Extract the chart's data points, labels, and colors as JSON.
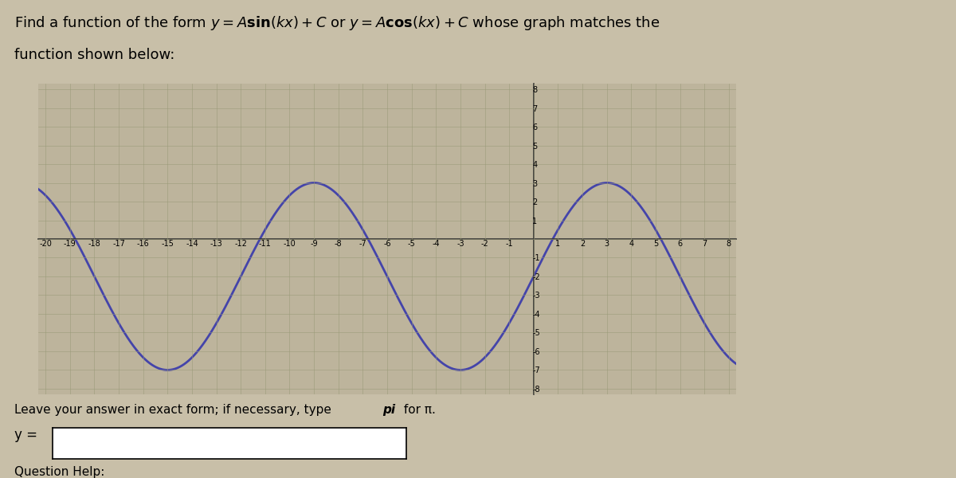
{
  "amplitude": 5,
  "k_val": 0.5235987755982988,
  "C": -2,
  "x_min": -20,
  "x_max": 8,
  "y_min": -8,
  "y_max": 8,
  "curve_color": "#4444aa",
  "grid_color": "#999977",
  "bg_color": "#c8bfa8",
  "plot_bg_color": "#bdb49c",
  "font_size_title": 13,
  "font_size_tick": 7,
  "line_width": 2.0,
  "leave_text": "Leave your answer in exact form; if necessary, type ",
  "leave_text_bold": "pi",
  "leave_text_end": " for π.",
  "answer_prefix": "y = ",
  "question_help": "Question Help:"
}
